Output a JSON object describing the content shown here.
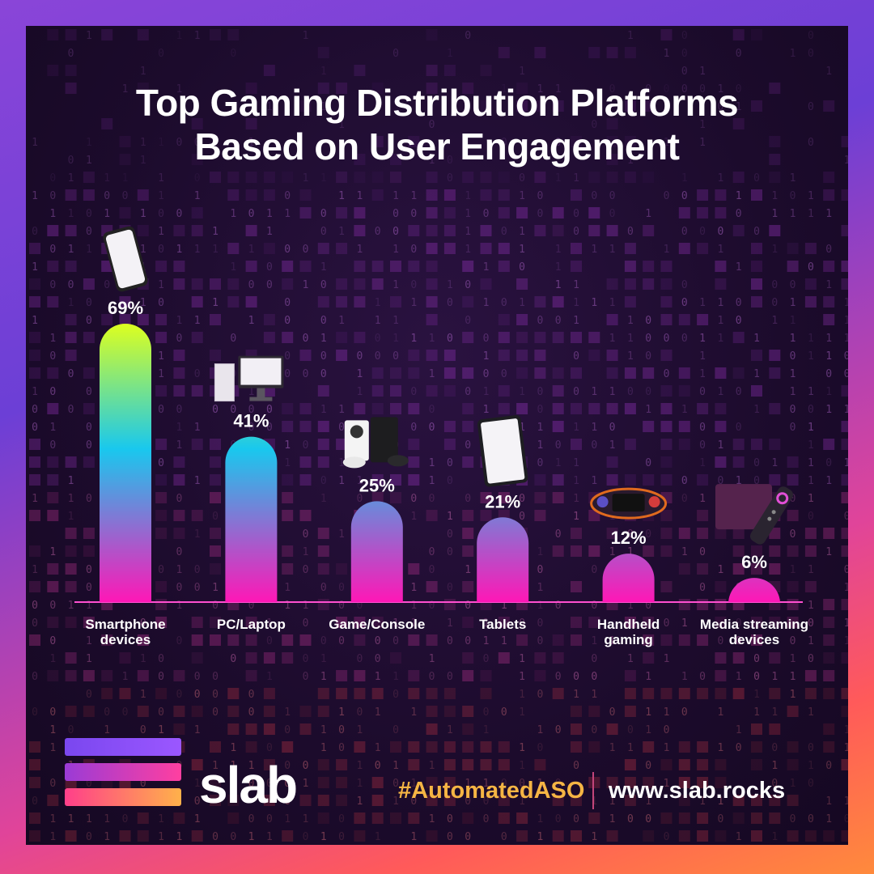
{
  "chart_data": {
    "type": "bar",
    "title": [
      "Top Gaming Distribution Platforms",
      "Based on User Engagement"
    ],
    "categories": [
      [
        "Smartphone",
        "devices"
      ],
      [
        "PC/Laptop"
      ],
      [
        "Game/Console"
      ],
      [
        "Tablets"
      ],
      [
        "Handheld",
        "gaming"
      ],
      [
        "Media streaming",
        "devices"
      ]
    ],
    "values": [
      69,
      41,
      25,
      21,
      12,
      6
    ],
    "value_labels": [
      "69%",
      "41%",
      "25%",
      "21%",
      "12%",
      "6%"
    ],
    "icons": [
      "smartphone-icon",
      "pc-laptop-icon",
      "game-console-icon",
      "tablet-icon",
      "handheld-gaming-icon",
      "media-streaming-icon"
    ],
    "unit": "%",
    "ylim": [
      0,
      69
    ],
    "gradient_colors": [
      "#ddff1f",
      "#19c8ee",
      "#ff17b6"
    ],
    "grid": false,
    "legend": "none"
  },
  "footer": {
    "brand": "slab",
    "hashtag": "#AutomatedASO",
    "website": "www.slab.rocks",
    "colors": {
      "hashtag": "#f5b544",
      "divider": "#c2457a"
    }
  }
}
